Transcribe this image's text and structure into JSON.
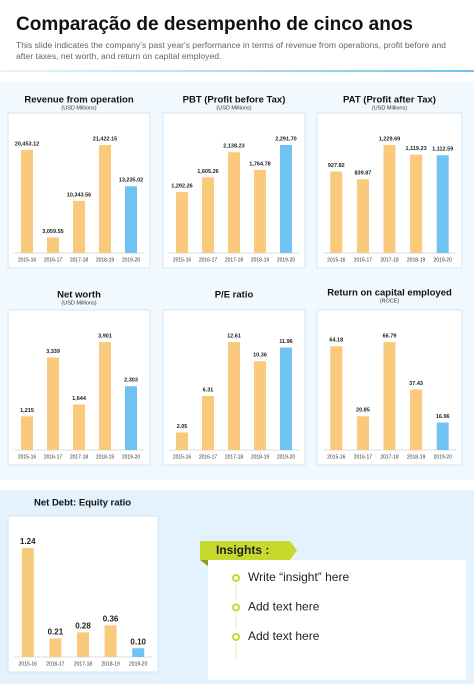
{
  "title": "Comparação de desempenho de cinco anos",
  "subtitle": "This slide indicates the company’s past year's performance in terms of revenue from operations, profit before and after taxes, net worth, and return on capital employed.",
  "chart_data": [
    {
      "type": "bar",
      "title": "Revenue from operation",
      "subtitle": "(USD Millions)",
      "categories": [
        "2015-16",
        "2016-17",
        "2017-18",
        "2018-19",
        "2019-20"
      ],
      "values": [
        20453.12,
        3059.55,
        10343.56,
        21422.15,
        13235.02
      ],
      "value_labels": [
        "20,453.12",
        "3,059.55",
        "10,343.56",
        "21,422.15",
        "13,235.02"
      ],
      "colors": [
        "#f9c97c",
        "#f9c97c",
        "#f9c97c",
        "#f9c97c",
        "#6ec3f2"
      ]
    },
    {
      "type": "bar",
      "title": "PBT (Profit before Tax)",
      "subtitle": "(USD Millions)",
      "categories": [
        "2015-16",
        "2016-17",
        "2017-18",
        "2018-19",
        "2019-20"
      ],
      "values": [
        1292.26,
        1605.26,
        2138.23,
        1764.78,
        2291.7
      ],
      "value_labels": [
        "1,292.26",
        "1,605.26",
        "2,138.23",
        "1,764.78",
        "2,291.70"
      ],
      "colors": [
        "#f9c97c",
        "#f9c97c",
        "#f9c97c",
        "#f9c97c",
        "#6ec3f2"
      ]
    },
    {
      "type": "bar",
      "title": "PAT (Profit after Tax)",
      "subtitle": "(USD Millions)",
      "categories": [
        "2015-16",
        "2016-17",
        "2017-18",
        "2018-19",
        "2019-20"
      ],
      "values": [
        927.82,
        839.87,
        1229.69,
        1119.23,
        1112.59
      ],
      "value_labels": [
        "927.82",
        "839.87",
        "1,229.69",
        "1,119.23",
        "1,112.59"
      ],
      "colors": [
        "#f9c97c",
        "#f9c97c",
        "#f9c97c",
        "#f9c97c",
        "#6ec3f2"
      ]
    },
    {
      "type": "bar",
      "title": "Net worth",
      "subtitle": "(USD Millions)",
      "categories": [
        "2015-16",
        "2016-17",
        "2017-18",
        "2018-19",
        "2019-20"
      ],
      "values": [
        1215,
        3339,
        1644,
        3901,
        2303
      ],
      "value_labels": [
        "1,215",
        "3,339",
        "1,644",
        "3,901",
        "2,303"
      ],
      "colors": [
        "#f9c97c",
        "#f9c97c",
        "#f9c97c",
        "#f9c97c",
        "#6ec3f2"
      ]
    },
    {
      "type": "bar",
      "title": "P/E ratio",
      "categories": [
        "2015-16",
        "2016-17",
        "2017-18",
        "2018-19",
        "2019-20"
      ],
      "values": [
        2.05,
        6.31,
        12.61,
        10.36,
        11.96
      ],
      "colors": [
        "#f9c97c",
        "#f9c97c",
        "#f9c97c",
        "#f9c97c",
        "#6ec3f2"
      ]
    },
    {
      "type": "bar",
      "title": "Return on capital employed",
      "subtitle": "(ROCE)",
      "categories": [
        "2015-16",
        "2016-17",
        "2017-18",
        "2018-19",
        "2019-20"
      ],
      "values": [
        64.18,
        20.85,
        66.79,
        37.43,
        16.96
      ],
      "colors": [
        "#f9c97c",
        "#f9c97c",
        "#f9c97c",
        "#f9c97c",
        "#6ec3f2"
      ]
    },
    {
      "type": "bar",
      "title": "Net Debt: Equity ratio",
      "categories": [
        "2015-16",
        "2016-17",
        "2017-18",
        "2018-19",
        "2019-20"
      ],
      "values": [
        1.24,
        0.21,
        0.28,
        0.36,
        0.1
      ],
      "value_labels": [
        "1.24",
        "0.21",
        "0.28",
        "0.36",
        "0.10"
      ],
      "colors": [
        "#f9c97c",
        "#f9c97c",
        "#f9c97c",
        "#f9c97c",
        "#6ec3f2"
      ]
    }
  ],
  "insights": {
    "title": "Insights :",
    "items": [
      "Write “insight” here",
      "Add text here",
      "Add text here"
    ]
  }
}
